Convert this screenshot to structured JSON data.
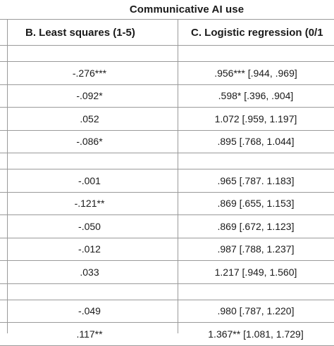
{
  "table": {
    "group_title": "Communicative AI use",
    "col_b": "B. Least squares (1-5)",
    "col_c": "C. Logistic regression (0/1",
    "rows": [
      {
        "b": "",
        "c": ""
      },
      {
        "b": "-.276***",
        "c": ".956*** [.944, .969]"
      },
      {
        "b": "-.092*",
        "c": ".598* [.396, .904]"
      },
      {
        "b": ".052",
        "c": "1.072 [.959, 1.197]"
      },
      {
        "b": "-.086*",
        "c": ".895 [.768, 1.044]"
      },
      {
        "b": "",
        "c": ""
      },
      {
        "b": "-.001",
        "c": ".965 [.787. 1.183]"
      },
      {
        "b": "-.121**",
        "c": ".869 [.655, 1.153]"
      },
      {
        "b": "-.050",
        "c": ".869 [.672, 1.123]"
      },
      {
        "b": "-.012",
        "c": ".987 [.788, 1.237]"
      },
      {
        "b": ".033",
        "c": "1.217 [.949, 1.560]"
      },
      {
        "b": "",
        "c": ""
      },
      {
        "b": "-.049",
        "c": ".980 [.787, 1.220]"
      },
      {
        "b": ".117**",
        "c": "1.367** [1.081, 1.729]"
      }
    ]
  }
}
